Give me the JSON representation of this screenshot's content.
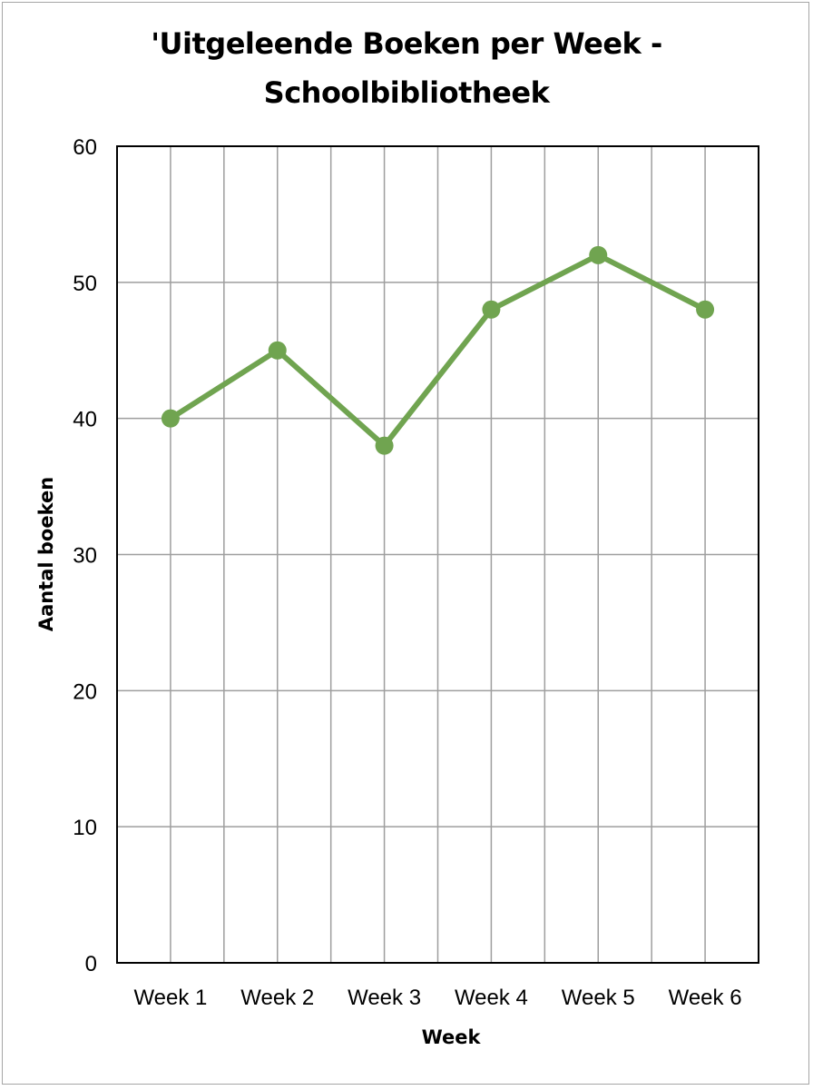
{
  "chart_data": {
    "type": "line",
    "title_line1": "'Uitgeleende Boeken per Week -",
    "title_line2": "Schoolbibliotheek",
    "xlabel": "Week",
    "ylabel": "Aantal boeken",
    "categories": [
      "Week 1",
      "Week 2",
      "Week 3",
      "Week 4",
      "Week 5",
      "Week 6"
    ],
    "series": [
      {
        "values": [
          40,
          45,
          38,
          48,
          52,
          48
        ],
        "color": "#70a450"
      }
    ],
    "ylim": [
      0,
      60
    ],
    "yticks": [
      0,
      10,
      20,
      30,
      40,
      50,
      60
    ],
    "grid": true,
    "legend": "none"
  }
}
